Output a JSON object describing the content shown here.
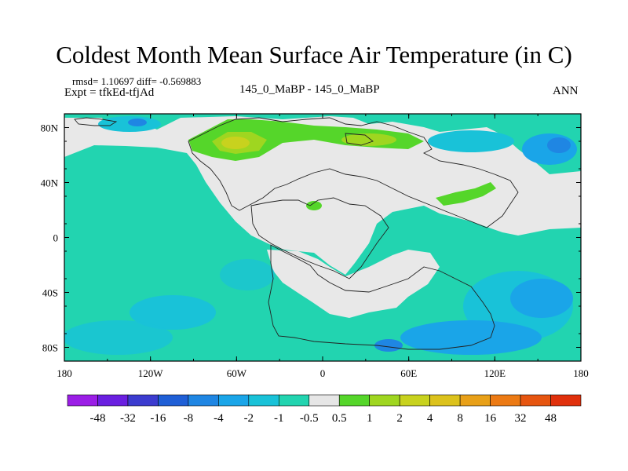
{
  "title": "Coldest Month Mean Surface Air Temperature (in C)",
  "stats_line": "rmsd= 1.10697 diff= -0.569883",
  "experiment_line": "Expt = tfkEd-tfjAd",
  "center_label": "145_0_MaBP - 145_0_MaBP",
  "season_label": "ANN",
  "lat_ticks": [
    "80N",
    "40N",
    "0",
    "40S",
    "80S"
  ],
  "lon_ticks": [
    "180",
    "120W",
    "60W",
    "0",
    "60E",
    "120E",
    "180"
  ],
  "colorbar": {
    "labels": [
      "-48",
      "-32",
      "-16",
      "-8",
      "-4",
      "-2",
      "-1",
      "-0.5",
      "0.5",
      "1",
      "2",
      "4",
      "8",
      "16",
      "32",
      "48"
    ],
    "colors": [
      "#9b1ee6",
      "#6a1fe0",
      "#3c3ccf",
      "#1f5fd6",
      "#1f86e3",
      "#1aa5e8",
      "#19c2d8",
      "#22d4b0",
      "#e6e6e6",
      "#55d62a",
      "#9fd620",
      "#c8d21e",
      "#dcc21c",
      "#e8a018",
      "#ec7a14",
      "#e65510",
      "#e0300c"
    ]
  },
  "colors": {
    "neutral": "#e8e8e8",
    "cool_1": "#22d4b0",
    "cool_2": "#19c2d8",
    "cool_3": "#1aa5e8",
    "cool_4": "#1f86e3",
    "cool_5": "#3c3ccf",
    "warm_1": "#55d62a",
    "warm_2": "#9fd620",
    "warm_3": "#c8d21e"
  }
}
